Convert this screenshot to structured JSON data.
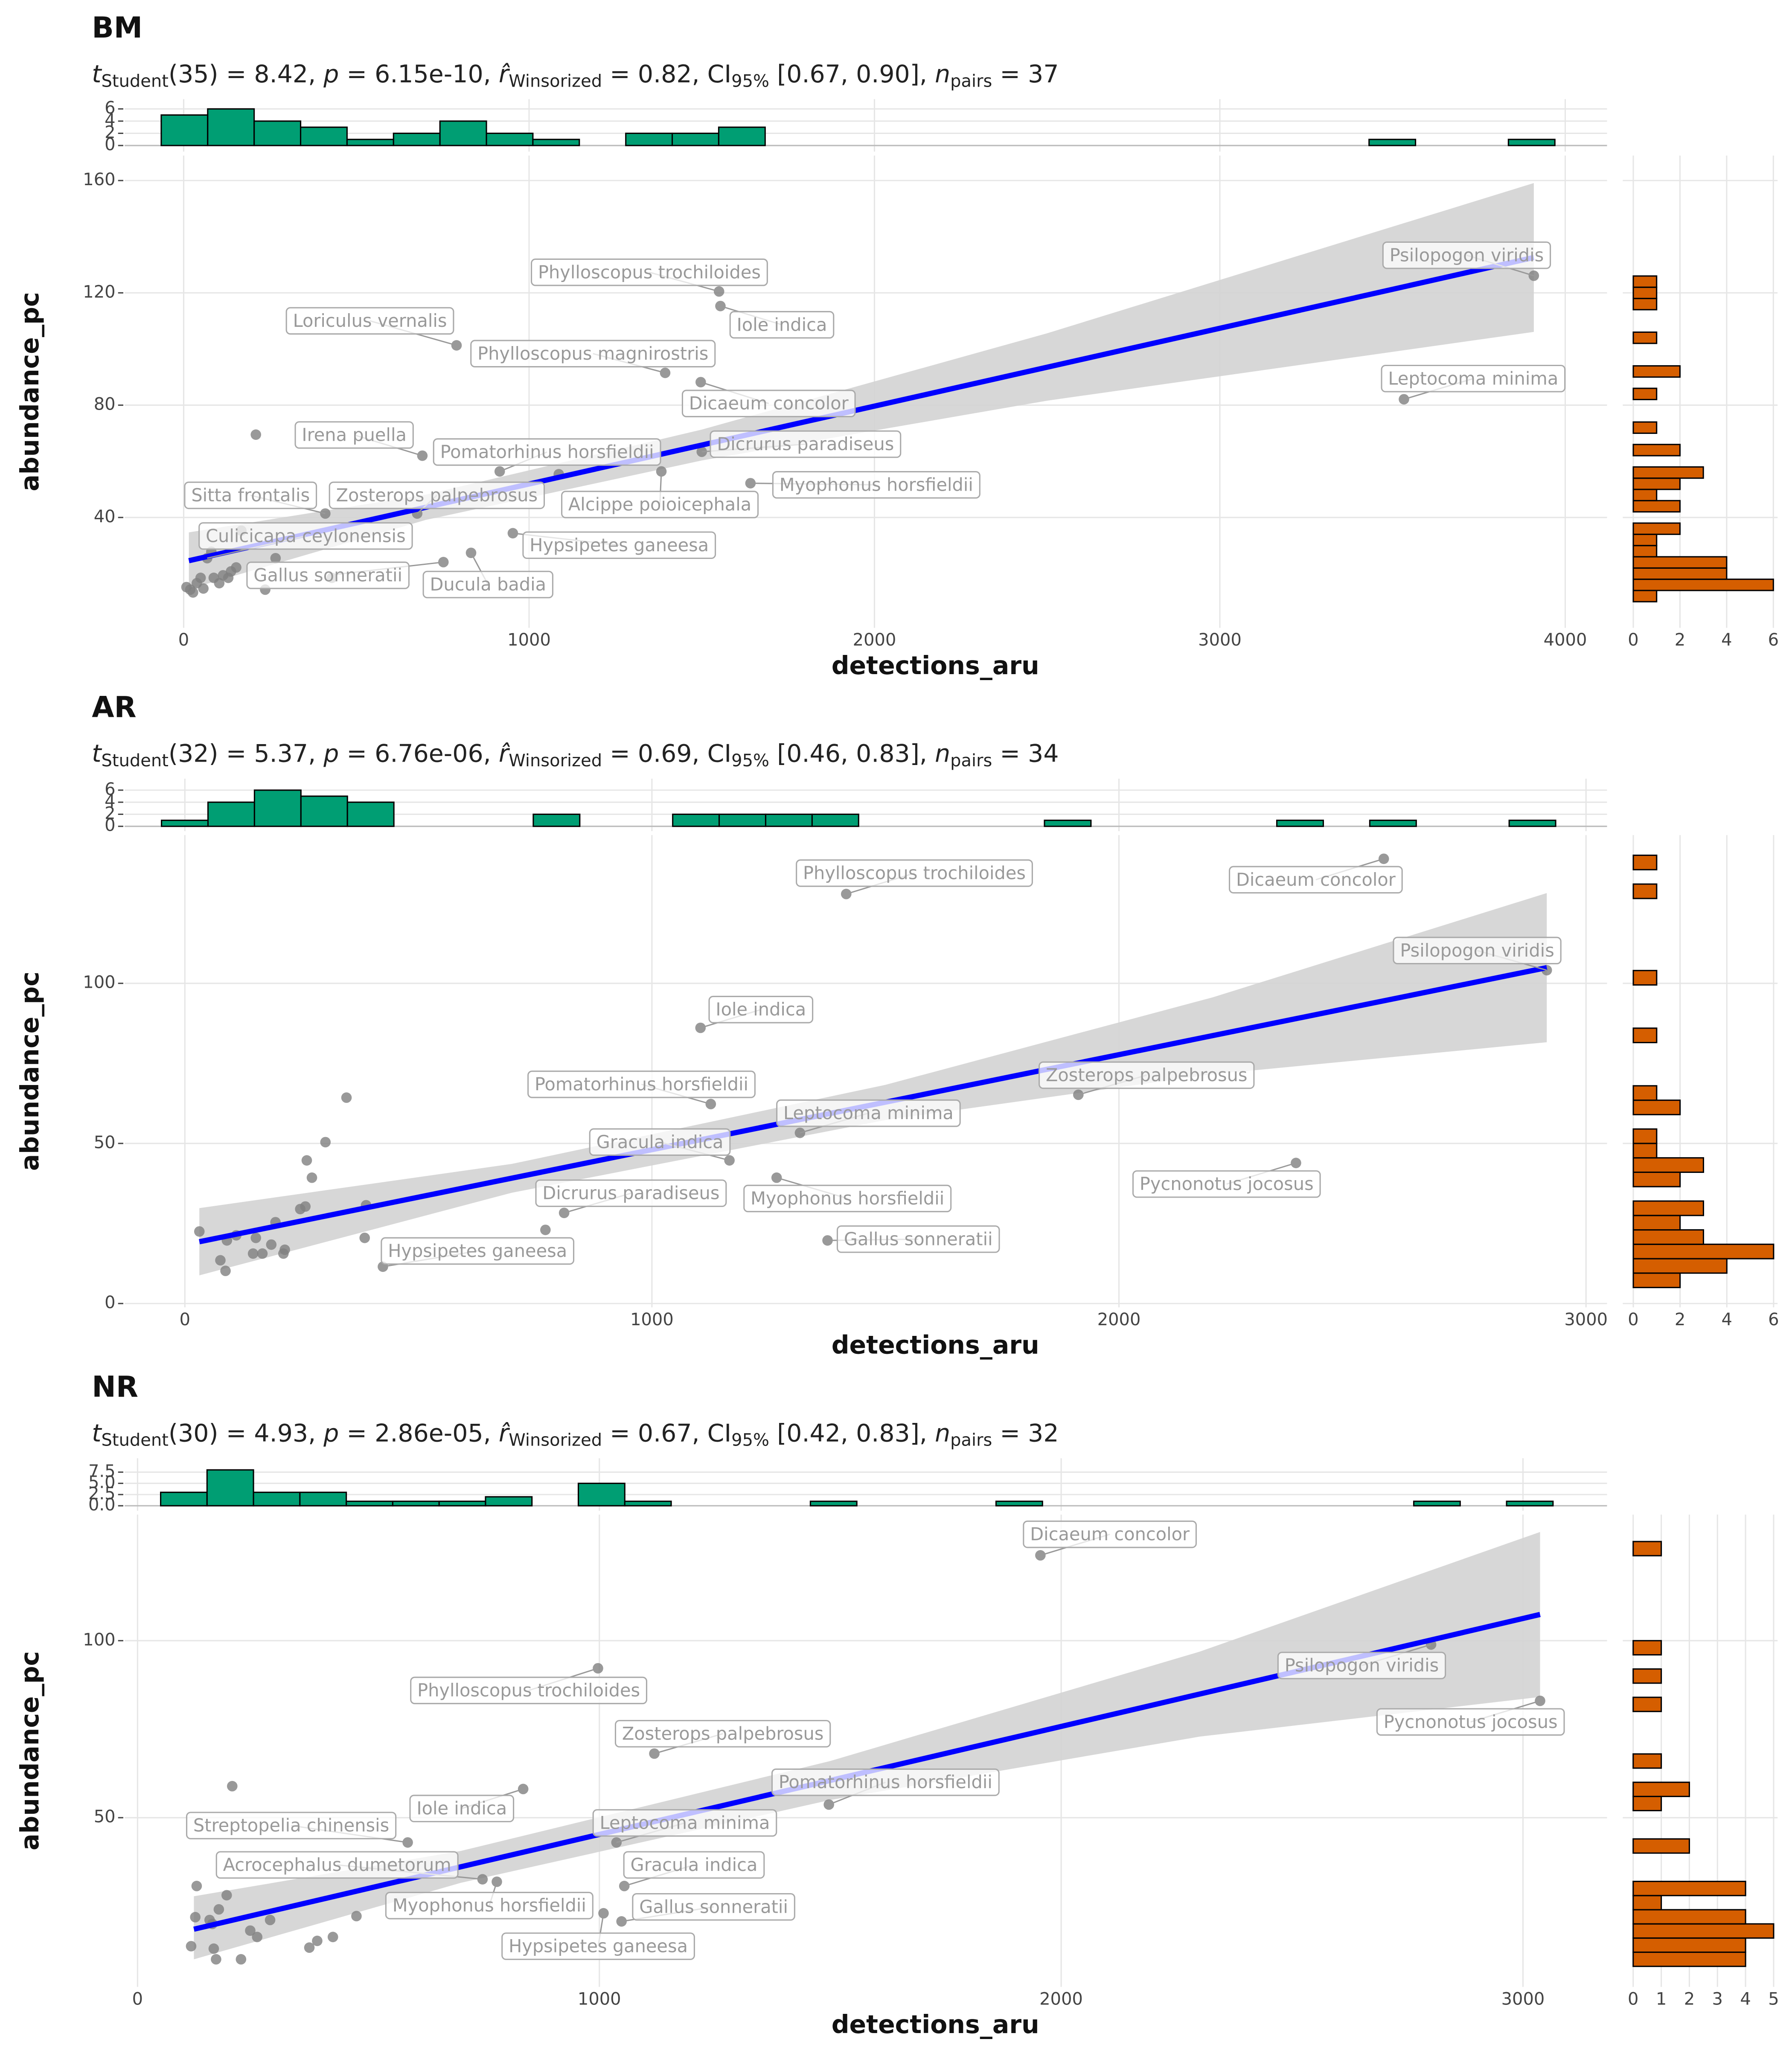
{
  "chart_data": [
    {
      "type": "scatter",
      "title": "BM",
      "subtitle": [
        {
          "text": "t",
          "style": "italic"
        },
        {
          "text": "Student",
          "style": "sub"
        },
        {
          "text": "(35) = 8.42, "
        },
        {
          "text": "p",
          "style": "italic"
        },
        {
          "text": " = 6.15e-10, "
        },
        {
          "text": "r̂",
          "style": "italic"
        },
        {
          "text": "Winsorized",
          "style": "sub"
        },
        {
          "text": " = 0.82, CI"
        },
        {
          "text": "95%",
          "style": "sub"
        },
        {
          "text": " [0.67, 0.90], "
        },
        {
          "text": "n",
          "style": "italic"
        },
        {
          "text": "pairs",
          "style": "sub"
        },
        {
          "text": " = 37"
        }
      ],
      "x_label": "detections_aru",
      "y_label": "abundance_pc",
      "x": [
        3909,
        3533,
        1550,
        1554,
        790,
        1394,
        1497,
        691,
        915,
        1500,
        1383,
        1641,
        410,
        676,
        68,
        953,
        752,
        832,
        209,
        429,
        266,
        236,
        8,
        27,
        49,
        87,
        129,
        152,
        38,
        57,
        1086,
        80,
        19,
        114,
        167,
        103,
        137
      ],
      "y": [
        126.1,
        82.1,
        120.5,
        115.3,
        101.3,
        91.5,
        88.2,
        62,
        56.4,
        63.4,
        56.4,
        52.2,
        41.4,
        41.4,
        25.5,
        34.4,
        24.1,
        27.4,
        69.5,
        18.5,
        25.5,
        14.3,
        15.2,
        13.3,
        18.5,
        18.5,
        18.5,
        22.2,
        16.6,
        14.7,
        55.4,
        27.8,
        14.3,
        19.4,
        35.3,
        16.6,
        20.8
      ],
      "labels": [
        "Psilopogon viridis",
        "Leptocoma minima",
        "Phylloscopus trochiloides",
        "Iole indica",
        "Loriculus vernalis",
        "Phylloscopus magnirostris",
        "Dicaeum concolor",
        "Irena puella",
        "Pomatorhinus horsfieldii",
        "Dicrurus paradiseus",
        "Alcippe poioicephala",
        "Myophonus horsfieldii",
        "Sitta frontalis",
        "Zosterops palpebrosus",
        "Culicicapa ceylonensis",
        "Hypsipetes ganeesa",
        "Gallus sonneratii",
        "Ducula badia",
        null,
        null,
        null,
        null,
        null,
        null,
        null,
        null,
        null,
        null,
        null,
        null,
        null,
        null,
        null,
        null,
        null,
        null,
        null
      ],
      "xlim": [
        -171,
        4121
      ],
      "ylim": [
        0.7,
        168.9
      ],
      "xticks": [
        0,
        1000,
        2000,
        3000,
        4000
      ],
      "yticks": [
        40,
        80,
        120,
        160
      ],
      "grid": true,
      "point_color": "#808080",
      "fit": {
        "x": [
          15,
          3909
        ],
        "y": [
          24.6,
          132.6
        ],
        "color": "#0000FF"
      },
      "band": {
        "x": [
          15,
          700,
          1500,
          2500,
          3909
        ],
        "lower": [
          14.5,
          39.1,
          60.3,
          81.6,
          106.1
        ],
        "upper": [
          34.7,
          48.1,
          71.3,
          105.6,
          159.1
        ],
        "color": "#D3D3D3"
      },
      "top_hist": {
        "bins": [
          -65,
          69.5,
          204,
          338.5,
          473,
          607.5,
          742,
          876.5,
          1011,
          1145.5,
          1280,
          1414.5,
          1549,
          1683.5,
          1818,
          1952.5,
          2087,
          2221.5,
          2356,
          2490.5,
          2625,
          2759.5,
          2894,
          3028.5,
          3163,
          3297.5,
          3432,
          3566.5,
          3701,
          3835.5,
          3970
        ],
        "counts": [
          5,
          6,
          4,
          3,
          1,
          2,
          4,
          2,
          1,
          0,
          2,
          2,
          3,
          0,
          0,
          0,
          0,
          0,
          0,
          0,
          0,
          0,
          0,
          0,
          0,
          0,
          1,
          0,
          0,
          1
        ],
        "ylim": [
          -1,
          7.6
        ],
        "yticks": [
          0,
          2,
          4,
          6
        ],
        "color": "#009E73"
      },
      "right_hist": {
        "bins": [
          10,
          14,
          18,
          22,
          26,
          30,
          34,
          38,
          42,
          46,
          50,
          54,
          58,
          62,
          66,
          70,
          74,
          78,
          82,
          86,
          90,
          94,
          98,
          102,
          106,
          110,
          114,
          118,
          122,
          126,
          130
        ],
        "counts": [
          1,
          6,
          4,
          4,
          1,
          1,
          2,
          0,
          2,
          1,
          2,
          3,
          0,
          2,
          0,
          1,
          0,
          0,
          1,
          0,
          2,
          0,
          0,
          1,
          0,
          0,
          1,
          1,
          1,
          0
        ],
        "xlim": [
          -0.45,
          6.18
        ],
        "xticks": [
          0,
          2,
          4,
          6
        ],
        "color": "#D55E00"
      }
    },
    {
      "type": "scatter",
      "title": "AR",
      "subtitle": [
        {
          "text": "t",
          "style": "italic"
        },
        {
          "text": "Student",
          "style": "sub"
        },
        {
          "text": "(32) = 5.37, "
        },
        {
          "text": "p",
          "style": "italic"
        },
        {
          "text": " = 6.76e-06, "
        },
        {
          "text": "r̂",
          "style": "italic"
        },
        {
          "text": "Winsorized",
          "style": "sub"
        },
        {
          "text": " = 0.69, CI"
        },
        {
          "text": "95%",
          "style": "sub"
        },
        {
          "text": " [0.46, 0.83], "
        },
        {
          "text": "n",
          "style": "italic"
        },
        {
          "text": "pairs",
          "style": "sub"
        },
        {
          "text": " = 34"
        }
      ],
      "x_label": "detections_aru",
      "y_label": "abundance_pc",
      "x": [
        1416,
        2567,
        2916,
        1104,
        1126,
        1913,
        1317,
        1166,
        2379,
        1267,
        812,
        1376,
        424,
        31,
        346,
        301,
        261,
        272,
        247,
        258,
        388,
        194,
        152,
        90,
        76,
        87,
        146,
        166,
        185,
        211,
        214,
        385,
        772,
        110
      ],
      "y": [
        127.9,
        138.9,
        104.1,
        86.1,
        62.3,
        65.2,
        53.3,
        44.7,
        43.9,
        39.3,
        28.3,
        19.7,
        11.5,
        22.5,
        64.3,
        50.4,
        44.7,
        39.3,
        29.5,
        30.3,
        30.7,
        25.4,
        20.5,
        19.7,
        13.5,
        10.2,
        15.6,
        15.6,
        18.4,
        15.6,
        16.8,
        20.5,
        23,
        21.3
      ],
      "labels": [
        "Phylloscopus trochiloides",
        "Dicaeum concolor",
        "Psilopogon viridis",
        "Iole indica",
        "Pomatorhinus horsfieldii",
        "Zosterops palpebrosus",
        "Leptocoma minima",
        "Gracula indica",
        "Pycnonotus jocosus",
        "Myophonus horsfieldii",
        "Dicrurus paradiseus",
        "Gallus sonneratii",
        "Hypsipetes ganeesa",
        null,
        null,
        null,
        null,
        null,
        null,
        null,
        null,
        null,
        null,
        null,
        null,
        null,
        null,
        null,
        null,
        null,
        null,
        null,
        null,
        null
      ],
      "xlim": [
        -129,
        3045
      ],
      "ylim": [
        -1.2,
        146.3
      ],
      "xticks": [
        0,
        1000,
        2000,
        3000
      ],
      "yticks": [
        0,
        50,
        100
      ],
      "grid": true,
      "point_color": "#808080",
      "fit": {
        "x": [
          31,
          2916
        ],
        "y": [
          19.3,
          104.9
        ],
        "color": "#0000FF"
      },
      "band": {
        "x": [
          31,
          700,
          1500,
          2200,
          2916
        ],
        "lower": [
          8.8,
          34.6,
          57.3,
          71.6,
          81.6
        ],
        "upper": [
          29.8,
          43.6,
          68.3,
          95.6,
          128.2
        ],
        "color": "#D3D3D3"
      },
      "top_hist": {
        "bins": [
          -50,
          49.5,
          149,
          248.5,
          348,
          447.5,
          547,
          646.5,
          746,
          845.5,
          945,
          1044.5,
          1144,
          1243.5,
          1343,
          1442.5,
          1542,
          1641.5,
          1741,
          1840.5,
          1940,
          2039.5,
          2139,
          2238.5,
          2338,
          2437.5,
          2537,
          2636.5,
          2736,
          2835.5,
          2935
        ],
        "counts": [
          1,
          4,
          6,
          5,
          4,
          0,
          0,
          0,
          2,
          0,
          0,
          2,
          2,
          2,
          2,
          0,
          0,
          0,
          0,
          1,
          0,
          0,
          0,
          0,
          1,
          0,
          1,
          0,
          0,
          1
        ],
        "ylim": [
          -0.8,
          7.9
        ],
        "yticks": [
          0,
          2,
          4,
          6
        ],
        "color": "#009E73"
      },
      "right_hist": {
        "bins": [
          5,
          9.5,
          14,
          18.5,
          23,
          27.5,
          32,
          36.5,
          41,
          45.5,
          50,
          54.5,
          59,
          63.5,
          68,
          72.5,
          77,
          81.5,
          86,
          90.5,
          95,
          99.5,
          104,
          108.5,
          113,
          117.5,
          122,
          126.5,
          131,
          135.5,
          140
        ],
        "counts": [
          2,
          4,
          6,
          3,
          2,
          3,
          0,
          2,
          3,
          1,
          1,
          0,
          2,
          1,
          0,
          0,
          0,
          1,
          0,
          0,
          0,
          1,
          0,
          0,
          0,
          0,
          0,
          1,
          0,
          1
        ],
        "xlim": [
          -0.45,
          6.17
        ],
        "xticks": [
          0,
          2,
          4,
          6
        ],
        "color": "#D55E00"
      }
    },
    {
      "type": "scatter",
      "title": "NR",
      "subtitle": [
        {
          "text": "t",
          "style": "italic"
        },
        {
          "text": "Student",
          "style": "sub"
        },
        {
          "text": "(30) = 4.93, "
        },
        {
          "text": "p",
          "style": "italic"
        },
        {
          "text": " = 2.86e-05, "
        },
        {
          "text": "r̂",
          "style": "italic"
        },
        {
          "text": "Winsorized",
          "style": "sub"
        },
        {
          "text": " = 0.67, CI"
        },
        {
          "text": "95%",
          "style": "sub"
        },
        {
          "text": " [0.42, 0.83], "
        },
        {
          "text": "n",
          "style": "italic"
        },
        {
          "text": "pairs",
          "style": "sub"
        },
        {
          "text": " = 32"
        }
      ],
      "x_label": "detections_aru",
      "y_label": "abundance_pc",
      "x": [
        1955,
        2801,
        3037,
        997,
        1119,
        1497,
        835,
        585,
        1037,
        747,
        1054,
        778,
        1048,
        1009,
        205,
        128,
        125,
        193,
        176,
        162,
        116,
        165,
        170,
        224,
        244,
        259,
        287,
        372,
        389,
        423,
        474,
        156
      ],
      "y": [
        124.1,
        98.9,
        83,
        92.2,
        68.1,
        53.7,
        58.1,
        43,
        43,
        32.6,
        30.7,
        31.9,
        20.7,
        23,
        58.9,
        30.7,
        21.9,
        28.1,
        24.1,
        20,
        13.7,
        13,
        10,
        10,
        18.1,
        16.3,
        21.1,
        13.3,
        15.2,
        16.3,
        22.2,
        21.1
      ],
      "labels": [
        "Dicaeum concolor",
        "Psilopogon viridis",
        "Pycnonotus jocosus",
        "Phylloscopus trochiloides",
        "Zosterops palpebrosus",
        "Pomatorhinus horsfieldii",
        "Iole indica",
        "Streptopelia chinensis",
        "Leptocoma minima",
        "Acrocephalus dumetorum",
        "Gracula indica",
        "Myophonus horsfieldii",
        "Gallus sonneratii",
        "Hypsipetes ganeesa",
        null,
        null,
        null,
        null,
        null,
        null,
        null,
        null,
        null,
        null,
        null,
        null,
        null,
        null,
        null,
        null,
        null,
        null
      ],
      "xlim": [
        -28,
        3182
      ],
      "ylim": [
        2.2,
        135.6
      ],
      "xticks": [
        0,
        1000,
        2000,
        3000
      ],
      "yticks": [
        50,
        100
      ],
      "grid": true,
      "point_color": "#808080",
      "fit": {
        "x": [
          122,
          3037
        ],
        "y": [
          18.5,
          107.4
        ],
        "color": "#0000FF"
      },
      "band": {
        "x": [
          122,
          700,
          1500,
          2300,
          3037
        ],
        "lower": [
          10,
          31.6,
          55,
          72.9,
          84.1
        ],
        "upper": [
          27.8,
          40.6,
          66,
          96.9,
          130.7
        ],
        "color": "#D3D3D3"
      },
      "top_hist": {
        "bins": [
          50,
          150.5,
          251,
          351.5,
          452,
          552.5,
          653,
          753.5,
          854,
          954.5,
          1055,
          1155.5,
          1256,
          1356.5,
          1457,
          1557.5,
          1658,
          1758.5,
          1859,
          1959.5,
          2060,
          2160.5,
          2261,
          2361.5,
          2462,
          2562.5,
          2663,
          2763.5,
          2864,
          2964.5,
          3065
        ],
        "counts": [
          3,
          8,
          3,
          3,
          1,
          1,
          1,
          2,
          0,
          5,
          1,
          0,
          0,
          0,
          1,
          0,
          0,
          0,
          1,
          0,
          0,
          0,
          0,
          0,
          0,
          0,
          0,
          1,
          0,
          1
        ],
        "ylim": [
          -1.1,
          10.6
        ],
        "yticks": [
          {
            "value": 0,
            "label": "0.0"
          },
          {
            "value": 2.5,
            "label": "2.5"
          },
          {
            "value": 5,
            "label": "5.0"
          },
          {
            "value": 7.5,
            "label": "7.5"
          }
        ],
        "color": "#009E73"
      },
      "right_hist": {
        "bins": [
          8,
          12,
          16,
          20,
          24,
          28,
          32,
          36,
          40,
          44,
          48,
          52,
          56,
          60,
          64,
          68,
          72,
          76,
          80,
          84,
          88,
          92,
          96,
          100,
          104,
          108,
          112,
          116,
          120,
          124,
          128
        ],
        "counts": [
          4,
          4,
          5,
          4,
          1,
          4,
          0,
          0,
          2,
          0,
          0,
          1,
          2,
          0,
          1,
          0,
          0,
          0,
          1,
          0,
          1,
          0,
          1,
          0,
          0,
          0,
          0,
          0,
          0,
          1
        ],
        "xlim": [
          -0.37,
          5.14
        ],
        "xticks": [
          0,
          1,
          2,
          3,
          4,
          5
        ],
        "color": "#D55E00"
      }
    }
  ]
}
